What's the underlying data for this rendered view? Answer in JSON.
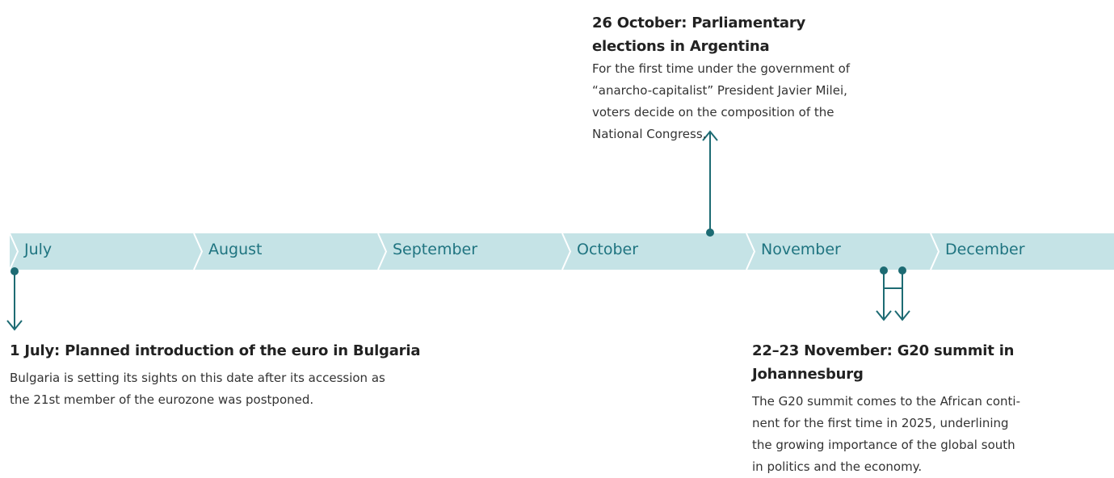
{
  "timeline": {
    "months": [
      "July",
      "August",
      "September",
      "October",
      "November",
      "December"
    ],
    "events": [
      {
        "title": [
          "26 October: Parliamentary",
          "elections in Argentina"
        ],
        "text": [
          "For the first time under the government of",
          "“anarcho-capitalist” President Javier Milei,",
          "voters decide on the composition of the",
          "National Congress."
        ]
      },
      {
        "title": [
          "1 July: Planned introduction of the euro in Bulgaria"
        ],
        "text": [
          "Bulgaria is setting its sights on this date after its accession as",
          "the 21st member of the eurozone was postponed."
        ]
      },
      {
        "title": [
          "22–23 November: G20 summit in",
          "Johannesburg"
        ],
        "text": [
          "The G20 summit comes to the African conti-",
          "nent for the first time in 2025, underlining",
          "the growing importance of the global south",
          "in politics and the economy."
        ]
      }
    ]
  }
}
